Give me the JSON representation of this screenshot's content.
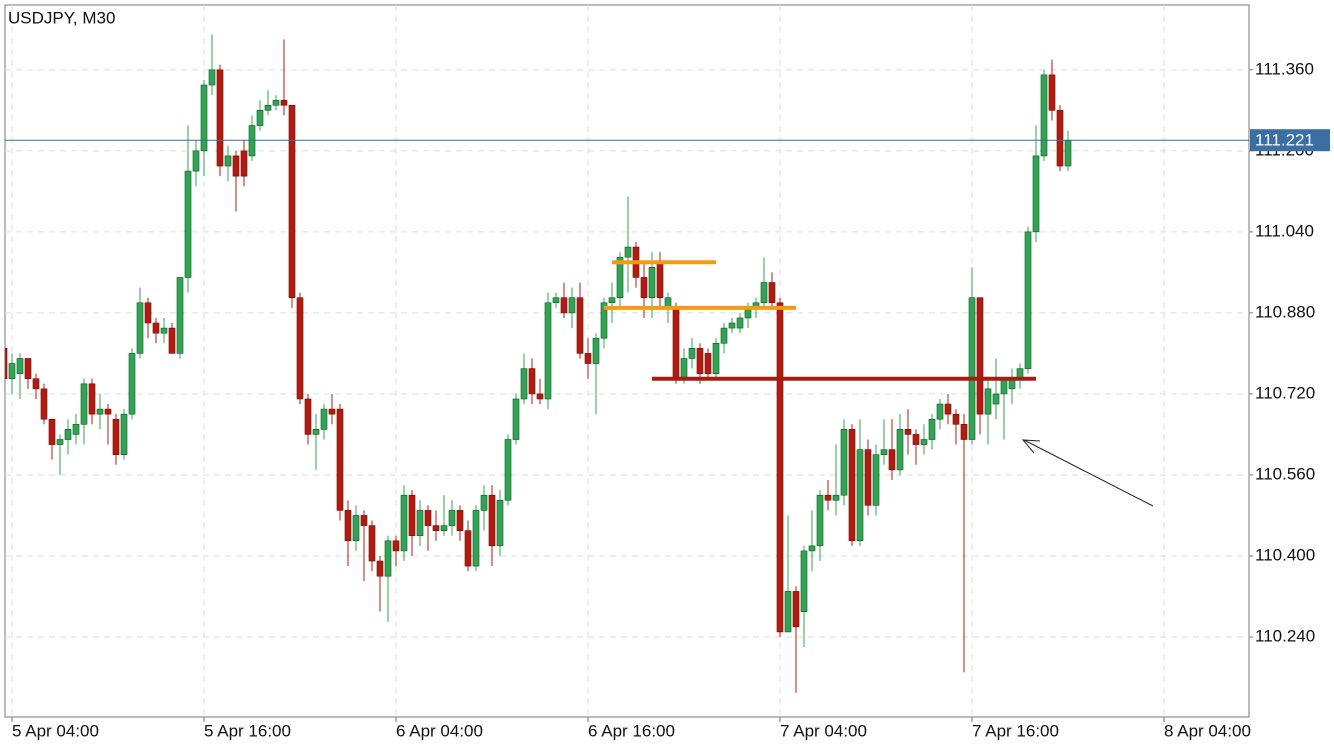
{
  "chart_data": {
    "type": "candlestick",
    "title": "USDJPY, M30",
    "x": [
      "5 Apr 03:30",
      "5 Apr 04:00",
      "5 Apr 04:30",
      "5 Apr 05:00",
      "5 Apr 05:30",
      "5 Apr 06:00",
      "5 Apr 06:30",
      "5 Apr 07:00",
      "5 Apr 07:30",
      "5 Apr 08:00",
      "5 Apr 08:30",
      "5 Apr 09:00",
      "5 Apr 09:30",
      "5 Apr 10:00",
      "5 Apr 10:30",
      "5 Apr 11:00",
      "5 Apr 11:30",
      "5 Apr 12:00",
      "5 Apr 12:30",
      "5 Apr 13:00",
      "5 Apr 13:30",
      "5 Apr 14:00",
      "5 Apr 14:30",
      "5 Apr 15:00",
      "5 Apr 15:30",
      "5 Apr 16:00",
      "5 Apr 16:30",
      "5 Apr 17:00",
      "5 Apr 17:30",
      "5 Apr 18:00",
      "5 Apr 18:30",
      "5 Apr 19:00",
      "5 Apr 19:30",
      "5 Apr 20:00",
      "5 Apr 20:30",
      "5 Apr 21:00",
      "5 Apr 21:30",
      "5 Apr 22:00",
      "5 Apr 22:30",
      "5 Apr 23:00",
      "5 Apr 23:30",
      "6 Apr 00:00",
      "6 Apr 00:30",
      "6 Apr 01:00",
      "6 Apr 01:30",
      "6 Apr 02:00",
      "6 Apr 02:30",
      "6 Apr 03:00",
      "6 Apr 03:30",
      "6 Apr 04:00",
      "6 Apr 04:30",
      "6 Apr 05:00",
      "6 Apr 05:30",
      "6 Apr 06:00",
      "6 Apr 06:30",
      "6 Apr 07:00",
      "6 Apr 07:30",
      "6 Apr 08:00",
      "6 Apr 08:30",
      "6 Apr 09:00",
      "6 Apr 09:30",
      "6 Apr 10:00",
      "6 Apr 10:30",
      "6 Apr 11:00",
      "6 Apr 11:30",
      "6 Apr 12:00",
      "6 Apr 12:30",
      "6 Apr 13:00",
      "6 Apr 13:30",
      "6 Apr 14:00",
      "6 Apr 14:30",
      "6 Apr 15:00",
      "6 Apr 15:30",
      "6 Apr 16:00",
      "6 Apr 16:30",
      "6 Apr 17:00",
      "6 Apr 17:30",
      "6 Apr 18:00",
      "6 Apr 18:30",
      "6 Apr 19:00",
      "6 Apr 19:30",
      "6 Apr 20:00",
      "6 Apr 20:30",
      "6 Apr 21:00",
      "6 Apr 21:30",
      "6 Apr 22:00",
      "6 Apr 22:30",
      "6 Apr 23:00",
      "6 Apr 23:30",
      "7 Apr 00:00",
      "7 Apr 00:30",
      "7 Apr 01:00",
      "7 Apr 01:30",
      "7 Apr 02:00",
      "7 Apr 02:30",
      "7 Apr 03:00",
      "7 Apr 03:30",
      "7 Apr 04:00",
      "7 Apr 04:30",
      "7 Apr 05:00",
      "7 Apr 05:30",
      "7 Apr 06:00",
      "7 Apr 06:30",
      "7 Apr 07:00",
      "7 Apr 07:30",
      "7 Apr 08:00",
      "7 Apr 08:30",
      "7 Apr 09:00",
      "7 Apr 09:30",
      "7 Apr 10:00",
      "7 Apr 10:30",
      "7 Apr 11:00",
      "7 Apr 11:30",
      "7 Apr 12:00",
      "7 Apr 12:30",
      "7 Apr 13:00",
      "7 Apr 13:30",
      "7 Apr 14:00",
      "7 Apr 14:30",
      "7 Apr 15:00",
      "7 Apr 15:30",
      "7 Apr 16:00",
      "7 Apr 16:30",
      "7 Apr 17:00",
      "7 Apr 17:30",
      "7 Apr 18:00",
      "7 Apr 18:30",
      "7 Apr 19:00",
      "7 Apr 19:30",
      "7 Apr 20:00",
      "7 Apr 20:30",
      "7 Apr 21:00",
      "7 Apr 21:30",
      "7 Apr 22:00"
    ],
    "open": [
      110.81,
      110.75,
      110.76,
      110.79,
      110.75,
      110.73,
      110.67,
      110.62,
      110.63,
      110.64,
      110.66,
      110.74,
      110.68,
      110.69,
      110.67,
      110.6,
      110.68,
      110.8,
      110.9,
      110.86,
      110.84,
      110.85,
      110.8,
      110.95,
      111.16,
      111.2,
      111.33,
      111.36,
      111.17,
      111.19,
      111.2,
      111.19,
      111.25,
      111.28,
      111.29,
      111.3,
      111.29,
      110.91,
      110.71,
      110.64,
      110.65,
      110.69,
      110.69,
      110.49,
      110.43,
      110.48,
      110.46,
      110.39,
      110.36,
      110.43,
      110.41,
      110.52,
      110.44,
      110.49,
      110.46,
      110.45,
      110.46,
      110.49,
      110.45,
      110.38,
      110.49,
      110.52,
      110.42,
      110.51,
      110.63,
      110.71,
      110.77,
      110.72,
      110.71,
      110.9,
      110.91,
      110.88,
      110.91,
      110.8,
      110.78,
      110.83,
      110.9,
      110.91,
      110.99,
      111.01,
      110.95,
      110.91,
      110.98,
      110.89,
      110.89,
      110.75,
      110.79,
      110.81,
      110.8,
      110.76,
      110.82,
      110.85,
      110.85,
      110.87,
      110.89,
      110.9,
      110.94,
      110.9,
      110.25,
      110.33,
      110.29,
      110.41,
      110.42,
      110.52,
      110.51,
      110.52,
      110.65,
      110.43,
      110.61,
      110.5,
      110.6,
      110.61,
      110.57,
      110.65,
      110.64,
      110.62,
      110.63,
      110.67,
      110.7,
      110.68,
      110.66,
      110.63,
      110.91,
      110.68,
      110.7,
      110.72,
      110.73,
      110.75,
      110.77,
      111.04,
      111.19,
      111.35,
      111.28,
      111.17
    ],
    "high": [
      110.82,
      110.8,
      110.8,
      110.79,
      110.76,
      110.74,
      110.67,
      110.64,
      110.67,
      110.68,
      110.75,
      110.75,
      110.72,
      110.7,
      110.68,
      110.69,
      110.81,
      110.93,
      110.91,
      110.87,
      110.87,
      110.86,
      110.94,
      111.25,
      111.22,
      111.34,
      111.43,
      111.37,
      111.21,
      111.2,
      111.22,
      111.27,
      111.3,
      111.32,
      111.31,
      111.42,
      111.29,
      110.92,
      110.72,
      110.68,
      110.7,
      110.72,
      110.7,
      110.51,
      110.5,
      110.49,
      110.47,
      110.4,
      110.44,
      110.44,
      110.54,
      110.53,
      110.51,
      110.5,
      110.49,
      110.52,
      110.51,
      110.5,
      110.47,
      110.5,
      110.54,
      110.54,
      110.53,
      110.64,
      110.72,
      110.8,
      110.79,
      110.75,
      110.92,
      110.92,
      110.94,
      110.93,
      110.94,
      110.83,
      110.84,
      110.91,
      110.94,
      111.0,
      111.11,
      111.02,
      110.98,
      111.0,
      111.0,
      110.92,
      110.9,
      110.81,
      110.83,
      110.82,
      110.81,
      110.83,
      110.86,
      110.87,
      110.88,
      110.9,
      110.91,
      110.99,
      110.96,
      110.91,
      110.48,
      110.34,
      110.42,
      110.49,
      110.53,
      110.55,
      110.62,
      110.67,
      110.66,
      110.67,
      110.63,
      110.62,
      110.67,
      110.67,
      110.68,
      110.69,
      110.65,
      110.66,
      110.68,
      110.71,
      110.72,
      110.69,
      110.68,
      110.97,
      110.91,
      110.75,
      110.79,
      110.75,
      110.77,
      110.78,
      111.05,
      111.25,
      111.36,
      111.38,
      111.29,
      111.24
    ],
    "low": [
      110.74,
      110.72,
      110.71,
      110.73,
      110.71,
      110.66,
      110.59,
      110.56,
      110.6,
      110.62,
      110.62,
      110.66,
      110.65,
      110.62,
      110.58,
      110.59,
      110.67,
      110.79,
      110.83,
      110.82,
      110.82,
      110.8,
      110.79,
      110.92,
      111.13,
      111.15,
      111.31,
      111.15,
      111.14,
      111.08,
      111.13,
      111.18,
      111.24,
      111.27,
      111.28,
      111.27,
      110.89,
      110.7,
      110.62,
      110.57,
      110.63,
      110.66,
      110.47,
      110.38,
      110.41,
      110.35,
      110.37,
      110.29,
      110.27,
      110.38,
      110.39,
      110.4,
      110.42,
      110.41,
      110.43,
      110.44,
      110.44,
      110.43,
      110.37,
      110.37,
      110.45,
      110.38,
      110.4,
      110.5,
      110.62,
      110.7,
      110.7,
      110.7,
      110.69,
      110.89,
      110.87,
      110.85,
      110.79,
      110.75,
      110.68,
      110.81,
      110.86,
      110.89,
      110.92,
      110.93,
      110.87,
      110.87,
      110.89,
      110.86,
      110.74,
      110.74,
      110.77,
      110.74,
      110.75,
      110.75,
      110.8,
      110.84,
      110.84,
      110.85,
      110.87,
      110.89,
      110.89,
      110.24,
      110.26,
      110.13,
      110.22,
      110.37,
      110.39,
      110.49,
      110.48,
      110.5,
      110.42,
      110.42,
      110.48,
      110.48,
      110.58,
      110.55,
      110.56,
      110.6,
      110.58,
      110.6,
      110.61,
      110.65,
      110.66,
      110.62,
      110.17,
      110.62,
      110.64,
      110.62,
      110.67,
      110.63,
      110.7,
      110.73,
      110.76,
      111.02,
      111.18,
      111.26,
      111.16,
      111.16
    ],
    "close": [
      110.75,
      110.78,
      110.79,
      110.75,
      110.73,
      110.67,
      110.62,
      110.63,
      110.65,
      110.66,
      110.74,
      110.68,
      110.69,
      110.68,
      110.6,
      110.68,
      110.8,
      110.9,
      110.86,
      110.84,
      110.85,
      110.8,
      110.95,
      111.16,
      111.2,
      111.33,
      111.36,
      111.17,
      111.19,
      111.15,
      111.15,
      111.25,
      111.28,
      111.29,
      111.3,
      111.29,
      110.91,
      110.71,
      110.64,
      110.65,
      110.69,
      110.68,
      110.49,
      110.43,
      110.48,
      110.46,
      110.39,
      110.36,
      110.43,
      110.41,
      110.52,
      110.44,
      110.49,
      110.46,
      110.45,
      110.46,
      110.49,
      110.45,
      110.38,
      110.49,
      110.52,
      110.42,
      110.51,
      110.63,
      110.71,
      110.77,
      110.72,
      110.71,
      110.9,
      110.91,
      110.88,
      110.91,
      110.8,
      110.78,
      110.83,
      110.9,
      110.91,
      110.99,
      111.01,
      110.95,
      110.91,
      110.97,
      110.91,
      110.91,
      110.75,
      110.79,
      110.81,
      110.76,
      110.76,
      110.82,
      110.85,
      110.86,
      110.87,
      110.89,
      110.9,
      110.94,
      110.9,
      110.25,
      110.33,
      110.26,
      110.41,
      110.42,
      110.52,
      110.51,
      110.52,
      110.65,
      110.43,
      110.61,
      110.5,
      110.6,
      110.61,
      110.57,
      110.65,
      110.64,
      110.62,
      110.63,
      110.67,
      110.7,
      110.68,
      110.66,
      110.63,
      110.91,
      110.68,
      110.73,
      110.72,
      110.75,
      110.75,
      110.77,
      111.04,
      111.19,
      111.35,
      111.28,
      111.17,
      111.22
    ],
    "up_color": "#2fa551",
    "down_color": "#b31b10",
    "ylim": [
      110.082,
      111.488
    ],
    "yticks": [
      {
        "value": 110.24,
        "label": "110.240"
      },
      {
        "value": 110.4,
        "label": "110.400"
      },
      {
        "value": 110.56,
        "label": "110.560"
      },
      {
        "value": 110.72,
        "label": "110.720"
      },
      {
        "value": 110.88,
        "label": "110.880"
      },
      {
        "value": 111.04,
        "label": "111.040"
      },
      {
        "value": 111.2,
        "label": "111.200"
      },
      {
        "value": 111.36,
        "label": "111.360"
      }
    ],
    "xticks": [
      "5 Apr 04:00",
      "5 Apr 16:00",
      "6 Apr 04:00",
      "6 Apr 16:00",
      "7 Apr 04:00",
      "7 Apr 16:00",
      "8 Apr 04:00"
    ],
    "grid": true,
    "last_price": 111.221,
    "last_price_color": "#3a6ea5",
    "lines": [
      {
        "value": 110.98,
        "from": "6 Apr 17:30",
        "to": "7 Apr 00:00",
        "color": "#f39c12"
      },
      {
        "value": 110.89,
        "from": "6 Apr 17:00",
        "to": "7 Apr 05:00",
        "color": "#f39c12"
      },
      {
        "value": 110.75,
        "from": "6 Apr 20:00",
        "to": "7 Apr 20:00",
        "color": "#a31d12"
      }
    ]
  }
}
